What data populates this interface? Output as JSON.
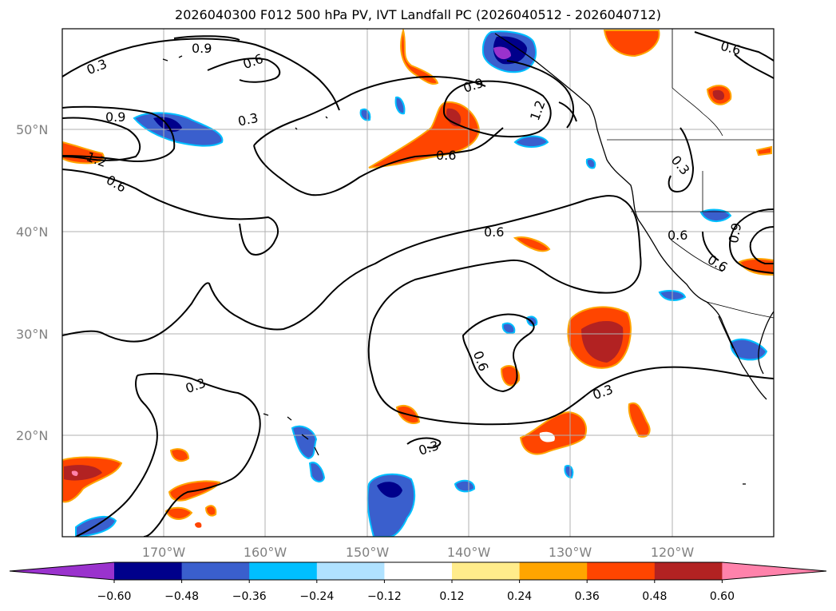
{
  "title": "2026040300 F012 500 hPa PV, IVT Landfall PC (2026040512 - 2026040712)",
  "map": {
    "lat_labels": [
      "50°N",
      "40°N",
      "30°N",
      "20°N"
    ],
    "lon_labels": [
      "170°W",
      "160°W",
      "150°W",
      "140°W",
      "130°W",
      "120°W"
    ],
    "contour_labels": [
      "0.3",
      "0.9",
      "0.6",
      "0.9",
      "1.2",
      "0.6",
      "0.3",
      "0.6",
      "0.9",
      "1.2",
      "0.6",
      "0.6",
      "0.6",
      "0.3",
      "0.3",
      "0.3",
      "0.6",
      "0.9",
      "0.3",
      "0.6"
    ],
    "contour_color": "#000000",
    "coastline_color": "#000000",
    "gridline_color": "#b0b0b0"
  },
  "colorbar": {
    "tick_labels": [
      "−0.60",
      "−0.48",
      "−0.36",
      "−0.24",
      "−0.12",
      "0.12",
      "0.24",
      "0.36",
      "0.48",
      "0.60"
    ],
    "colors": [
      "#9a32cd",
      "#00008b",
      "#3a5fcd",
      "#00bfff",
      "#b0e2ff",
      "#ffffff",
      "#ffec8b",
      "#ffa500",
      "#ff4500",
      "#b22222",
      "#ff82ab"
    ]
  }
}
